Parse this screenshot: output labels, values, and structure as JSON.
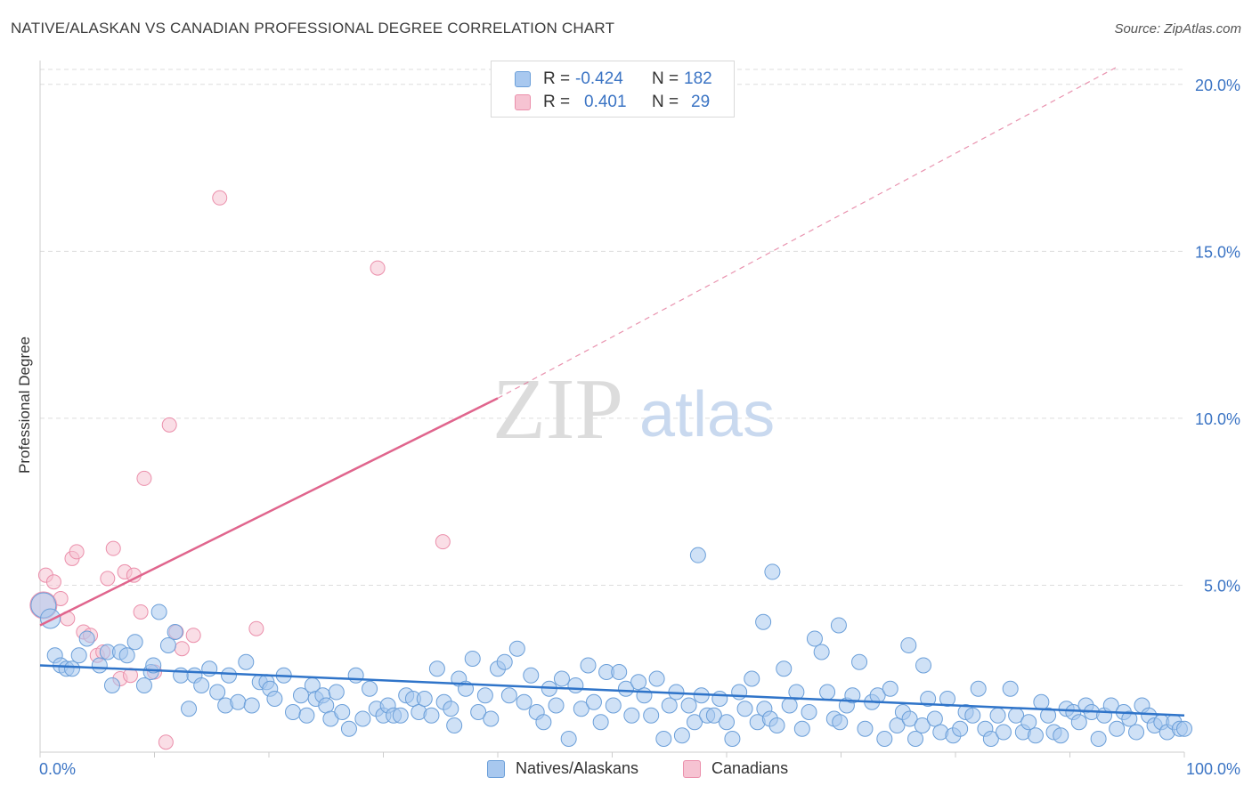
{
  "title": "NATIVE/ALASKAN VS CANADIAN PROFESSIONAL DEGREE CORRELATION CHART",
  "source": "Source: ZipAtlas.com",
  "watermark": {
    "zip": "ZIP",
    "atlas": "atlas"
  },
  "legend_top": {
    "r_label": "R =",
    "n_label": "N =",
    "rows": [
      {
        "r": "-0.424",
        "n": "182",
        "color": "#a8c8ef"
      },
      {
        "r": "0.401",
        "n": "29",
        "color": "#f4b6c9"
      }
    ]
  },
  "colors": {
    "blue_fill": "#a8c8ef",
    "blue_stroke": "#6b9fd9",
    "blue_line": "#2f74c9",
    "pink_fill": "#f6c3d2",
    "pink_stroke": "#eb8fab",
    "pink_line": "#e0658d",
    "tick_label": "#3b74c4",
    "grid": "#dddddd"
  },
  "chart_data": {
    "type": "scatter",
    "title": "NATIVE/ALASKAN VS CANADIAN PROFESSIONAL DEGREE CORRELATION CHART",
    "xlabel": "",
    "ylabel": "Professional Degree",
    "xlim": [
      0,
      100
    ],
    "ylim": [
      0,
      20.5
    ],
    "x_tick_labels": [
      "0.0%",
      "100.0%"
    ],
    "y_ticks": [
      5,
      10,
      15,
      20
    ],
    "y_tick_labels": [
      "5.0%",
      "10.0%",
      "15.0%",
      "20.0%"
    ],
    "grid": "horizontal dashed",
    "legend_position": "bottom",
    "series": [
      {
        "name": "Natives/Alaskans",
        "r": -0.424,
        "n": 182,
        "trend": {
          "x": [
            0,
            100
          ],
          "y": [
            2.6,
            1.1
          ],
          "style": "solid"
        },
        "points": [
          [
            0.3,
            4.4
          ],
          [
            0.9,
            4.0
          ],
          [
            1.3,
            2.9
          ],
          [
            1.8,
            2.6
          ],
          [
            2.3,
            2.5
          ],
          [
            2.8,
            2.5
          ],
          [
            3.4,
            2.9
          ],
          [
            4.1,
            3.4
          ],
          [
            5.2,
            2.6
          ],
          [
            5.9,
            3.0
          ],
          [
            6.3,
            2.0
          ],
          [
            7.0,
            3.0
          ],
          [
            7.6,
            2.9
          ],
          [
            8.3,
            3.3
          ],
          [
            9.1,
            2.0
          ],
          [
            9.7,
            2.4
          ],
          [
            9.9,
            2.6
          ],
          [
            10.4,
            4.2
          ],
          [
            11.2,
            3.2
          ],
          [
            11.8,
            3.6
          ],
          [
            12.3,
            2.3
          ],
          [
            13.0,
            1.3
          ],
          [
            13.5,
            2.3
          ],
          [
            14.1,
            2.0
          ],
          [
            14.8,
            2.5
          ],
          [
            15.5,
            1.8
          ],
          [
            16.2,
            1.4
          ],
          [
            16.5,
            2.3
          ],
          [
            17.3,
            1.5
          ],
          [
            18.0,
            2.7
          ],
          [
            18.5,
            1.4
          ],
          [
            19.2,
            2.1
          ],
          [
            19.8,
            2.1
          ],
          [
            20.1,
            1.9
          ],
          [
            20.5,
            1.6
          ],
          [
            21.3,
            2.3
          ],
          [
            22.1,
            1.2
          ],
          [
            22.8,
            1.7
          ],
          [
            23.3,
            1.1
          ],
          [
            23.8,
            2.0
          ],
          [
            24.1,
            1.6
          ],
          [
            24.7,
            1.7
          ],
          [
            25.0,
            1.4
          ],
          [
            25.4,
            1.0
          ],
          [
            25.9,
            1.8
          ],
          [
            26.4,
            1.2
          ],
          [
            27.0,
            0.7
          ],
          [
            27.6,
            2.3
          ],
          [
            28.2,
            1.0
          ],
          [
            28.8,
            1.9
          ],
          [
            29.4,
            1.3
          ],
          [
            30.0,
            1.1
          ],
          [
            30.4,
            1.4
          ],
          [
            30.9,
            1.1
          ],
          [
            31.5,
            1.1
          ],
          [
            32.0,
            1.7
          ],
          [
            32.6,
            1.6
          ],
          [
            33.1,
            1.2
          ],
          [
            33.6,
            1.6
          ],
          [
            34.2,
            1.1
          ],
          [
            34.7,
            2.5
          ],
          [
            35.3,
            1.5
          ],
          [
            35.9,
            1.3
          ],
          [
            36.2,
            0.8
          ],
          [
            36.6,
            2.2
          ],
          [
            37.2,
            1.9
          ],
          [
            37.8,
            2.8
          ],
          [
            38.3,
            1.2
          ],
          [
            38.9,
            1.7
          ],
          [
            39.4,
            1.0
          ],
          [
            40.0,
            2.5
          ],
          [
            40.6,
            2.7
          ],
          [
            41.0,
            1.7
          ],
          [
            41.7,
            3.1
          ],
          [
            42.3,
            1.5
          ],
          [
            42.9,
            2.3
          ],
          [
            43.4,
            1.2
          ],
          [
            44.0,
            0.9
          ],
          [
            44.5,
            1.9
          ],
          [
            45.1,
            1.4
          ],
          [
            45.6,
            2.2
          ],
          [
            46.2,
            0.4
          ],
          [
            46.8,
            2.0
          ],
          [
            47.3,
            1.3
          ],
          [
            47.9,
            2.6
          ],
          [
            48.4,
            1.5
          ],
          [
            49.0,
            0.9
          ],
          [
            49.5,
            2.4
          ],
          [
            50.1,
            1.4
          ],
          [
            50.6,
            2.4
          ],
          [
            51.2,
            1.9
          ],
          [
            51.7,
            1.1
          ],
          [
            52.3,
            2.1
          ],
          [
            52.8,
            1.7
          ],
          [
            53.4,
            1.1
          ],
          [
            53.9,
            2.2
          ],
          [
            54.5,
            0.4
          ],
          [
            55.0,
            1.4
          ],
          [
            55.6,
            1.8
          ],
          [
            56.1,
            0.5
          ],
          [
            56.7,
            1.4
          ],
          [
            57.2,
            0.9
          ],
          [
            57.8,
            1.7
          ],
          [
            58.3,
            1.1
          ],
          [
            58.9,
            1.1
          ],
          [
            59.4,
            1.6
          ],
          [
            60.0,
            0.9
          ],
          [
            60.5,
            0.4
          ],
          [
            61.1,
            1.8
          ],
          [
            61.6,
            1.3
          ],
          [
            62.2,
            2.2
          ],
          [
            62.7,
            0.9
          ],
          [
            63.3,
            1.3
          ],
          [
            63.8,
            1.0
          ],
          [
            64.4,
            0.8
          ],
          [
            65.0,
            2.5
          ],
          [
            65.5,
            1.4
          ],
          [
            66.1,
            1.8
          ],
          [
            66.6,
            0.7
          ],
          [
            67.2,
            1.2
          ],
          [
            67.7,
            3.4
          ],
          [
            68.3,
            3.0
          ],
          [
            68.8,
            1.8
          ],
          [
            69.4,
            1.0
          ],
          [
            69.9,
            0.9
          ],
          [
            70.5,
            1.4
          ],
          [
            71.0,
            1.7
          ],
          [
            71.6,
            2.7
          ],
          [
            72.1,
            0.7
          ],
          [
            72.7,
            1.5
          ],
          [
            73.2,
            1.7
          ],
          [
            73.8,
            0.4
          ],
          [
            74.3,
            1.9
          ],
          [
            74.9,
            0.8
          ],
          [
            75.4,
            1.2
          ],
          [
            76.0,
            1.0
          ],
          [
            76.5,
            0.4
          ],
          [
            77.1,
            0.8
          ],
          [
            77.6,
            1.6
          ],
          [
            78.2,
            1.0
          ],
          [
            78.7,
            0.6
          ],
          [
            79.3,
            1.6
          ],
          [
            79.8,
            0.5
          ],
          [
            80.4,
            0.7
          ],
          [
            80.9,
            1.2
          ],
          [
            81.5,
            1.1
          ],
          [
            82.0,
            1.9
          ],
          [
            82.6,
            0.7
          ],
          [
            83.1,
            0.4
          ],
          [
            83.7,
            1.1
          ],
          [
            84.2,
            0.6
          ],
          [
            84.8,
            1.9
          ],
          [
            85.3,
            1.1
          ],
          [
            85.9,
            0.6
          ],
          [
            86.4,
            0.9
          ],
          [
            87.0,
            0.5
          ],
          [
            87.5,
            1.5
          ],
          [
            88.1,
            1.1
          ],
          [
            88.6,
            0.6
          ],
          [
            89.2,
            0.5
          ],
          [
            89.7,
            1.3
          ],
          [
            90.3,
            1.2
          ],
          [
            90.8,
            0.9
          ],
          [
            91.4,
            1.4
          ],
          [
            91.9,
            1.2
          ],
          [
            92.5,
            0.4
          ],
          [
            93.0,
            1.1
          ],
          [
            93.6,
            1.4
          ],
          [
            94.1,
            0.7
          ],
          [
            94.7,
            1.2
          ],
          [
            95.2,
            1.0
          ],
          [
            95.8,
            0.6
          ],
          [
            96.3,
            1.4
          ],
          [
            96.9,
            1.1
          ],
          [
            97.4,
            0.8
          ],
          [
            98.0,
            0.9
          ],
          [
            98.5,
            0.6
          ],
          [
            99.1,
            0.9
          ],
          [
            99.6,
            0.7
          ],
          [
            100.0,
            0.7
          ],
          [
            57.5,
            5.9
          ],
          [
            64.0,
            5.4
          ],
          [
            69.8,
            3.8
          ],
          [
            75.9,
            3.2
          ],
          [
            77.2,
            2.6
          ],
          [
            63.2,
            3.9
          ]
        ]
      },
      {
        "name": "Canadians",
        "r": 0.401,
        "n": 29,
        "trend": {
          "x": [
            0,
            40
          ],
          "y": [
            3.8,
            10.6
          ],
          "dashed_to": [
            94,
            20.5
          ],
          "style": "solid-then-dashed"
        },
        "points": [
          [
            0.3,
            4.4
          ],
          [
            0.5,
            5.3
          ],
          [
            1.2,
            5.1
          ],
          [
            1.8,
            4.6
          ],
          [
            2.4,
            4.0
          ],
          [
            2.8,
            5.8
          ],
          [
            3.2,
            6.0
          ],
          [
            3.8,
            3.6
          ],
          [
            4.4,
            3.5
          ],
          [
            5.0,
            2.9
          ],
          [
            5.5,
            3.0
          ],
          [
            5.9,
            5.2
          ],
          [
            6.4,
            6.1
          ],
          [
            7.0,
            2.2
          ],
          [
            7.4,
            5.4
          ],
          [
            7.9,
            2.3
          ],
          [
            8.2,
            5.3
          ],
          [
            8.8,
            4.2
          ],
          [
            9.1,
            8.2
          ],
          [
            10.0,
            2.4
          ],
          [
            11.0,
            0.3
          ],
          [
            11.3,
            9.8
          ],
          [
            11.9,
            3.6
          ],
          [
            12.4,
            3.1
          ],
          [
            13.4,
            3.5
          ],
          [
            15.7,
            16.6
          ],
          [
            18.9,
            3.7
          ],
          [
            29.5,
            14.5
          ],
          [
            35.2,
            6.3
          ]
        ]
      }
    ]
  }
}
